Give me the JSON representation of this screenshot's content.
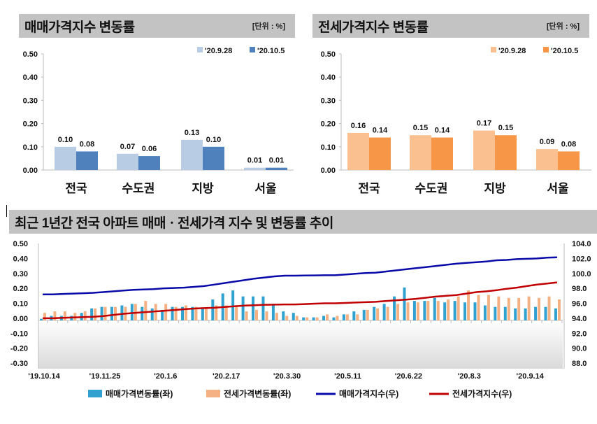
{
  "chart_data": [
    {
      "type": "bar",
      "title": "매매가격지수 변동률",
      "unit": "[단위 : %]",
      "categories": [
        "전국",
        "수도권",
        "지방",
        "서울"
      ],
      "series": [
        {
          "name": "'20.9.28",
          "values": [
            0.1,
            0.07,
            0.13,
            0.01
          ],
          "labels": [
            "0.10",
            "0.07",
            "0.13",
            "0.01"
          ],
          "color": "#b8cce4"
        },
        {
          "name": "'20.10.5",
          "values": [
            0.08,
            0.06,
            0.1,
            0.01
          ],
          "labels": [
            "0.08",
            "0.06",
            "0.10",
            "0.01"
          ],
          "color": "#4f81bd"
        }
      ],
      "ylim": [
        0,
        0.5
      ],
      "yticks": [
        "0.00",
        "0.10",
        "0.20",
        "0.30",
        "0.40",
        "0.50"
      ],
      "legend": "top-right"
    },
    {
      "type": "bar",
      "title": "전세가격지수 변동률",
      "unit": "[단위 : %]",
      "categories": [
        "전국",
        "수도권",
        "지방",
        "서울"
      ],
      "series": [
        {
          "name": "'20.9.28",
          "values": [
            0.16,
            0.15,
            0.17,
            0.09
          ],
          "labels": [
            "0.16",
            "0.15",
            "0.17",
            "0.09"
          ],
          "color": "#fac090"
        },
        {
          "name": "'20.10.5",
          "values": [
            0.14,
            0.14,
            0.15,
            0.08
          ],
          "labels": [
            "0.14",
            "0.14",
            "0.15",
            "0.08"
          ],
          "color": "#f79646"
        }
      ],
      "ylim": [
        0,
        0.5
      ],
      "yticks": [
        "0.00",
        "0.10",
        "0.20",
        "0.30",
        "0.40",
        "0.50"
      ],
      "legend": "top-right"
    },
    {
      "type": "bar+line",
      "title": "최근 1년간 전국 아파트 매매ㆍ전세가격 지수 및 변동률 추이",
      "xticks": [
        "'19.10.14",
        "'19.11.25",
        "'20.1.6",
        "'20.2.17",
        "'20.3.30",
        "'20.5.11",
        "'20.6.22",
        "'20.8.3",
        "'20.9.14"
      ],
      "ylim_left": [
        -0.3,
        0.5
      ],
      "yticks_left": [
        "-0.30",
        "-0.20",
        "-0.10",
        "0.00",
        "0.10",
        "0.20",
        "0.30",
        "0.40",
        "0.50"
      ],
      "ylim_right": [
        88.0,
        104.0
      ],
      "yticks_right": [
        "88.0",
        "90.0",
        "92.0",
        "94.0",
        "96.0",
        "98.0",
        "100.0",
        "102.0",
        "104.0"
      ],
      "legend": "bottom",
      "series": [
        {
          "name": "매매가격변동률(좌)",
          "kind": "bar",
          "axis": "left",
          "color": "#31a2cf",
          "values": [
            0.01,
            0.03,
            0.03,
            0.03,
            0.05,
            0.08,
            0.09,
            0.09,
            0.1,
            0.11,
            0.09,
            0.08,
            0.07,
            0.09,
            0.09,
            0.09,
            0.08,
            0.14,
            0.18,
            0.2,
            0.16,
            0.16,
            0.16,
            0.11,
            0.06,
            0.05,
            0.02,
            0.02,
            0.03,
            0.02,
            0.04,
            0.06,
            0.07,
            0.09,
            0.11,
            0.16,
            0.22,
            0.13,
            0.13,
            0.15,
            0.12,
            0.13,
            0.12,
            0.12,
            0.1,
            0.09,
            0.09,
            0.08,
            0.08,
            0.09,
            0.09,
            0.08
          ]
        },
        {
          "name": "전세가격변동률(좌)",
          "kind": "bar",
          "axis": "left",
          "color": "#f4b183",
          "values": [
            0.05,
            0.06,
            0.06,
            0.05,
            0.06,
            0.08,
            0.09,
            0.09,
            0.09,
            0.11,
            0.13,
            0.11,
            0.11,
            0.09,
            0.1,
            0.09,
            0.08,
            0.1,
            0.1,
            0.09,
            0.06,
            0.07,
            0.06,
            0.05,
            0.03,
            0.03,
            0.02,
            0.02,
            0.04,
            0.03,
            0.04,
            0.04,
            0.07,
            0.08,
            0.09,
            0.11,
            0.12,
            0.12,
            0.13,
            0.13,
            0.14,
            0.16,
            0.2,
            0.17,
            0.17,
            0.16,
            0.15,
            0.15,
            0.16,
            0.15,
            0.16,
            0.14
          ]
        },
        {
          "name": "매매가격지수(우)",
          "kind": "line",
          "axis": "right",
          "color": "#0a0aa8",
          "values": [
            97.2,
            97.2,
            97.25,
            97.3,
            97.35,
            97.4,
            97.5,
            97.6,
            97.7,
            97.8,
            97.85,
            97.9,
            98.0,
            98.05,
            98.1,
            98.2,
            98.3,
            98.5,
            98.7,
            98.9,
            99.1,
            99.3,
            99.45,
            99.6,
            99.7,
            99.7,
            99.72,
            99.73,
            99.75,
            99.75,
            99.85,
            99.95,
            100.05,
            100.1,
            100.25,
            100.4,
            100.55,
            100.7,
            100.85,
            101.0,
            101.15,
            101.3,
            101.4,
            101.5,
            101.6,
            101.75,
            101.8,
            101.9,
            101.95,
            102.0,
            102.1,
            102.15
          ]
        },
        {
          "name": "전세가격지수(우)",
          "kind": "line",
          "axis": "right",
          "color": "#c00000",
          "values": [
            94.0,
            94.0,
            94.05,
            94.1,
            94.15,
            94.2,
            94.3,
            94.45,
            94.6,
            94.7,
            94.8,
            94.9,
            95.0,
            95.1,
            95.2,
            95.3,
            95.35,
            95.4,
            95.5,
            95.6,
            95.7,
            95.75,
            95.8,
            95.82,
            95.85,
            95.85,
            95.9,
            95.95,
            96.0,
            96.0,
            96.05,
            96.1,
            96.15,
            96.2,
            96.3,
            96.4,
            96.5,
            96.6,
            96.75,
            96.9,
            97.0,
            97.1,
            97.3,
            97.5,
            97.6,
            97.75,
            97.95,
            98.1,
            98.3,
            98.5,
            98.65,
            98.8
          ]
        }
      ]
    }
  ]
}
